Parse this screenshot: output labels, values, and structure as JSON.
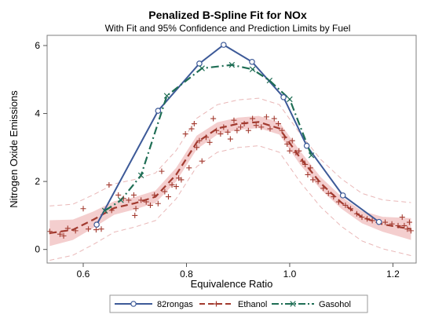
{
  "chart_data": {
    "type": "line",
    "title": "Penalized B-Spline Fit for NOx",
    "subtitle": "With Fit and 95% Confidence and Prediction Limits by Fuel",
    "xlabel": "Equivalence Ratio",
    "ylabel": "Nitrogen Oxide Emissions",
    "xlim": [
      0.53,
      1.245
    ],
    "ylim": [
      -0.4,
      6.3
    ],
    "x_ticks": [
      "0.6",
      "0.8",
      "1.0",
      "1.2"
    ],
    "x_tick_values": [
      0.6,
      0.8,
      1.0,
      1.2
    ],
    "y_ticks": [
      "0",
      "2",
      "4",
      "6"
    ],
    "y_tick_values": [
      0,
      2,
      4,
      6
    ],
    "grid": false,
    "legend_position": "bottom",
    "colors": {
      "82rongas": "#3d5a98",
      "Ethanol": "#a23a2f",
      "Gasohol": "#1f6e55",
      "confidence_band": "#f2c6c6",
      "prediction_limit": "#e9b7b7",
      "frame": "#7f7f7f"
    },
    "series": [
      {
        "name": "82rongas",
        "style": "solid-line-circle-markers",
        "x": [
          0.626,
          0.745,
          0.825,
          0.872,
          0.927,
          0.988,
          1.033,
          1.103,
          1.173
        ],
        "y": [
          0.73,
          4.08,
          5.47,
          6.02,
          5.52,
          4.48,
          3.05,
          1.59,
          0.81
        ]
      },
      {
        "name": "Gasohol",
        "style": "dash-dot-line-x-markers",
        "x": [
          0.642,
          0.673,
          0.712,
          0.762,
          0.83,
          0.888,
          0.928,
          0.961,
          1.0,
          1.042
        ],
        "y": [
          1.14,
          1.45,
          2.18,
          4.52,
          5.33,
          5.43,
          5.3,
          4.97,
          4.42,
          2.77
        ]
      },
      {
        "name": "Ethanol",
        "style": "dashed-fit-plus-markers",
        "fit_x": [
          0.535,
          0.58,
          0.62,
          0.66,
          0.7,
          0.74,
          0.78,
          0.82,
          0.86,
          0.9,
          0.94,
          0.98,
          1.02,
          1.06,
          1.1,
          1.14,
          1.18,
          1.235
        ],
        "fit_y": [
          0.48,
          0.58,
          0.88,
          1.22,
          1.36,
          1.55,
          2.2,
          3.15,
          3.56,
          3.7,
          3.75,
          3.56,
          2.7,
          1.95,
          1.38,
          0.95,
          0.74,
          0.6
        ],
        "confidence_halfwidth": [
          0.38,
          0.3,
          0.24,
          0.2,
          0.18,
          0.18,
          0.2,
          0.2,
          0.18,
          0.18,
          0.18,
          0.18,
          0.2,
          0.18,
          0.18,
          0.18,
          0.22,
          0.32
        ],
        "prediction_halfwidth": [
          0.8,
          0.75,
          0.73,
          0.71,
          0.7,
          0.7,
          0.71,
          0.71,
          0.7,
          0.7,
          0.7,
          0.7,
          0.71,
          0.7,
          0.7,
          0.7,
          0.72,
          0.78
        ],
        "points": [
          [
            0.535,
            0.53
          ],
          [
            0.555,
            0.45
          ],
          [
            0.562,
            0.4
          ],
          [
            0.57,
            0.62
          ],
          [
            0.585,
            0.55
          ],
          [
            0.6,
            1.2
          ],
          [
            0.61,
            0.6
          ],
          [
            0.625,
            0.58
          ],
          [
            0.635,
            0.6
          ],
          [
            0.65,
            1.9
          ],
          [
            0.655,
            1.15
          ],
          [
            0.668,
            1.6
          ],
          [
            0.678,
            1.5
          ],
          [
            0.688,
            1.45
          ],
          [
            0.698,
            1.6
          ],
          [
            0.7,
            1.0
          ],
          [
            0.702,
            1.2
          ],
          [
            0.712,
            1.45
          ],
          [
            0.722,
            1.4
          ],
          [
            0.73,
            1.3
          ],
          [
            0.738,
            1.6
          ],
          [
            0.745,
            1.35
          ],
          [
            0.752,
            2.3
          ],
          [
            0.758,
            1.7
          ],
          [
            0.765,
            1.55
          ],
          [
            0.772,
            1.9
          ],
          [
            0.78,
            1.85
          ],
          [
            0.785,
            2.1
          ],
          [
            0.79,
            2.05
          ],
          [
            0.798,
            3.4
          ],
          [
            0.805,
            2.4
          ],
          [
            0.81,
            3.55
          ],
          [
            0.815,
            3.7
          ],
          [
            0.82,
            3.0
          ],
          [
            0.825,
            3.2
          ],
          [
            0.83,
            2.6
          ],
          [
            0.838,
            3.3
          ],
          [
            0.845,
            3.15
          ],
          [
            0.852,
            3.85
          ],
          [
            0.858,
            3.5
          ],
          [
            0.866,
            3.4
          ],
          [
            0.872,
            3.6
          ],
          [
            0.88,
            3.45
          ],
          [
            0.885,
            3.25
          ],
          [
            0.892,
            3.8
          ],
          [
            0.898,
            3.5
          ],
          [
            0.905,
            3.6
          ],
          [
            0.912,
            3.7
          ],
          [
            0.92,
            3.5
          ],
          [
            0.928,
            3.85
          ],
          [
            0.935,
            3.65
          ],
          [
            0.945,
            3.6
          ],
          [
            0.955,
            3.9
          ],
          [
            0.962,
            3.55
          ],
          [
            0.97,
            3.85
          ],
          [
            0.978,
            3.7
          ],
          [
            0.985,
            3.5
          ],
          [
            0.99,
            3.3
          ],
          [
            0.995,
            3.1
          ],
          [
            1.0,
            2.9
          ],
          [
            1.005,
            3.2
          ],
          [
            1.012,
            2.85
          ],
          [
            1.018,
            2.9
          ],
          [
            1.025,
            2.6
          ],
          [
            1.03,
            2.5
          ],
          [
            1.035,
            2.2
          ],
          [
            1.04,
            2.4
          ],
          [
            1.045,
            2.05
          ],
          [
            1.055,
            2.0
          ],
          [
            1.065,
            1.8
          ],
          [
            1.075,
            1.65
          ],
          [
            1.085,
            1.55
          ],
          [
            1.095,
            1.4
          ],
          [
            1.108,
            1.3
          ],
          [
            1.118,
            1.2
          ],
          [
            1.13,
            1.05
          ],
          [
            1.14,
            0.95
          ],
          [
            1.15,
            0.9
          ],
          [
            1.16,
            0.85
          ],
          [
            1.172,
            0.8
          ],
          [
            1.185,
            0.8
          ],
          [
            1.198,
            0.75
          ],
          [
            1.21,
            0.7
          ],
          [
            1.218,
            0.95
          ],
          [
            1.222,
            0.7
          ],
          [
            1.228,
            0.6
          ],
          [
            1.232,
            0.8
          ],
          [
            1.235,
            0.55
          ]
        ]
      }
    ],
    "legend": [
      {
        "name": "82rongas",
        "marker": "circle"
      },
      {
        "name": "Ethanol",
        "marker": "plus"
      },
      {
        "name": "Gasohol",
        "marker": "x"
      }
    ]
  }
}
